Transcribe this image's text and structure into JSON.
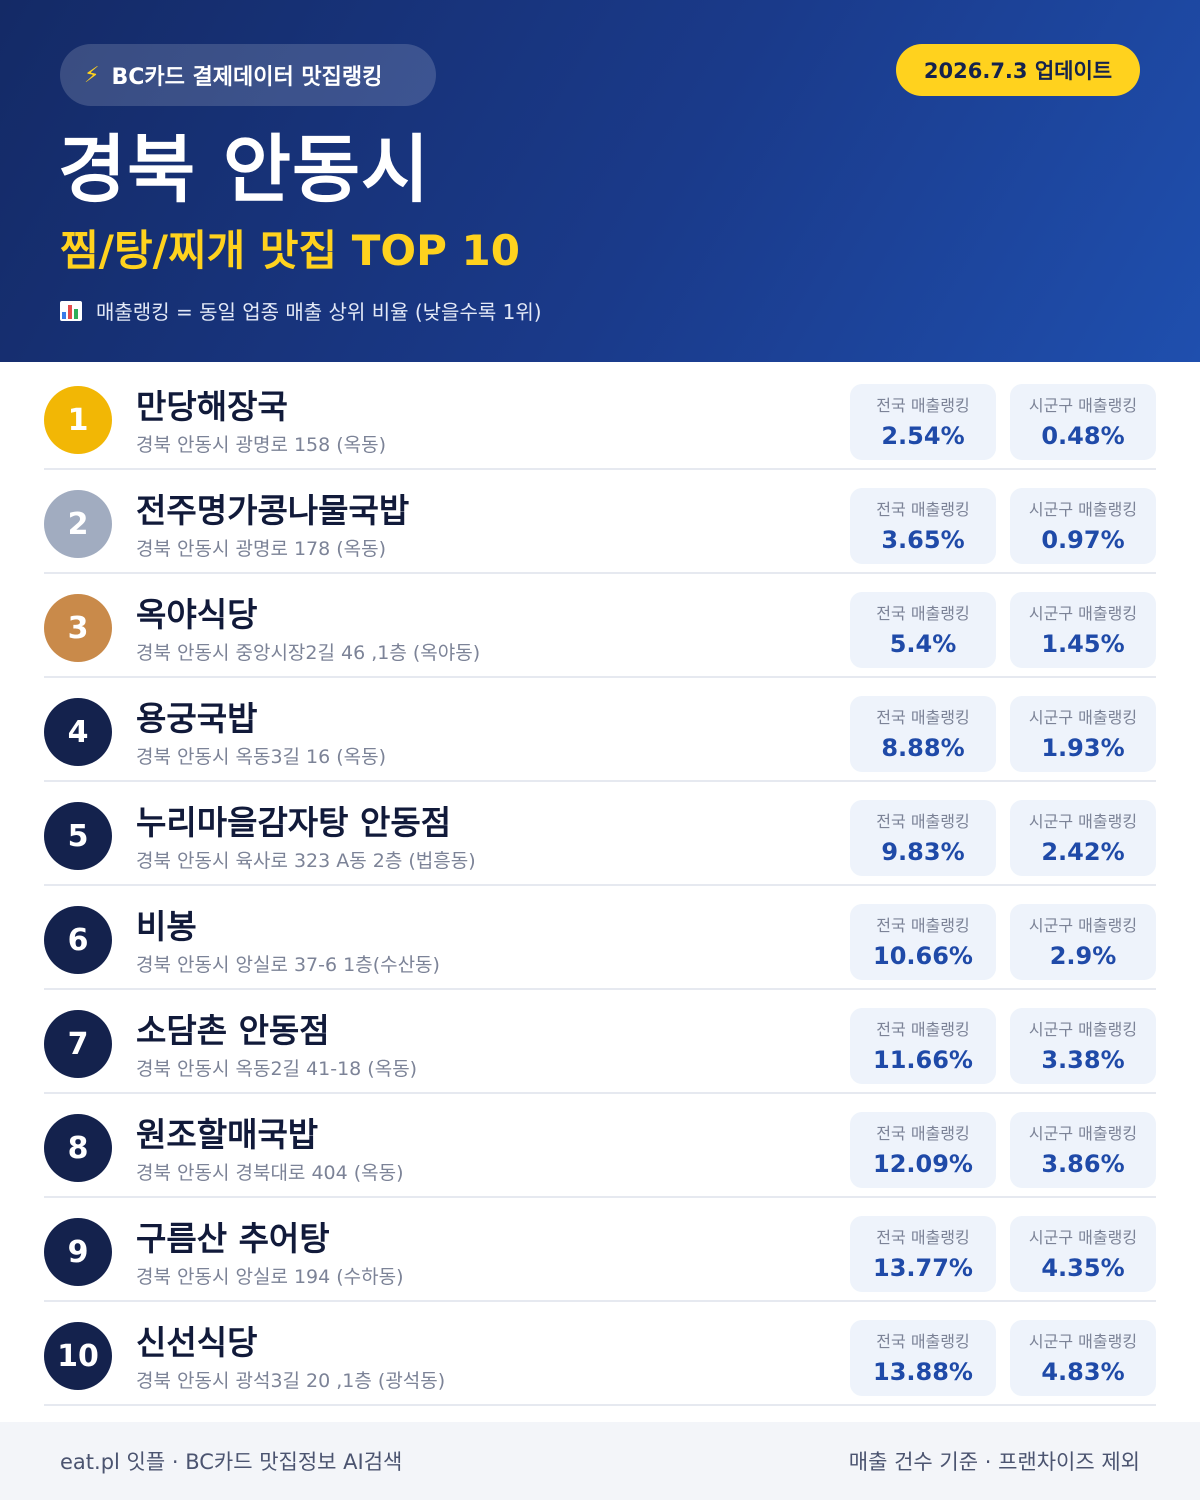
{
  "header": {
    "source_icon": "lightning-icon",
    "source_label": "BC카드 결제데이터 맛집랭킹",
    "update_label": "2026.7.3 업데이트",
    "title": "경북 안동시",
    "subtitle": "찜/탕/찌개 맛집 TOP 10",
    "note_icon": "bar-chart-icon",
    "note": "매출랭킹 = 동일 업종 매출 상위 비율 (낮을수록 1위)"
  },
  "colors": {
    "rank_gold": "#f2b705",
    "rank_silver": "#a1acc0",
    "rank_bronze": "#c98a4a",
    "rank_default": "#14224d",
    "accent_yellow": "#ffd21e",
    "value_blue": "#1f4aa8"
  },
  "stat_labels": {
    "national": "전국 매출랭킹",
    "local": "시군구 매출랭킹"
  },
  "restaurants": [
    {
      "rank": "1",
      "name": "만당해장국",
      "address": "경북 안동시 광명로 158 (옥동)",
      "national": "2.54%",
      "local": "0.48%"
    },
    {
      "rank": "2",
      "name": "전주명가콩나물국밥",
      "address": "경북 안동시 광명로 178 (옥동)",
      "national": "3.65%",
      "local": "0.97%"
    },
    {
      "rank": "3",
      "name": "옥야식당",
      "address": "경북 안동시 중앙시장2길 46 ,1층 (옥야동)",
      "national": "5.4%",
      "local": "1.45%"
    },
    {
      "rank": "4",
      "name": "용궁국밥",
      "address": "경북 안동시 옥동3길 16 (옥동)",
      "national": "8.88%",
      "local": "1.93%"
    },
    {
      "rank": "5",
      "name": "누리마을감자탕 안동점",
      "address": "경북 안동시 육사로 323 A동 2층 (법흥동)",
      "national": "9.83%",
      "local": "2.42%"
    },
    {
      "rank": "6",
      "name": "비봉",
      "address": "경북 안동시 앙실로 37-6 1층(수산동)",
      "national": "10.66%",
      "local": "2.9%"
    },
    {
      "rank": "7",
      "name": "소담촌 안동점",
      "address": "경북 안동시 옥동2길 41-18 (옥동)",
      "national": "11.66%",
      "local": "3.38%"
    },
    {
      "rank": "8",
      "name": "원조할매국밥",
      "address": "경북 안동시 경북대로 404 (옥동)",
      "national": "12.09%",
      "local": "3.86%"
    },
    {
      "rank": "9",
      "name": "구름산 추어탕",
      "address": "경북 안동시 앙실로 194 (수하동)",
      "national": "13.77%",
      "local": "4.35%"
    },
    {
      "rank": "10",
      "name": "신선식당",
      "address": "경북 안동시 광석3길 20 ,1층 (광석동)",
      "national": "13.88%",
      "local": "4.83%"
    }
  ],
  "footer": {
    "left": "eat.pl 잇플 · BC카드 맛집정보 AI검색",
    "right": "매출 건수 기준 · 프랜차이즈 제외"
  }
}
